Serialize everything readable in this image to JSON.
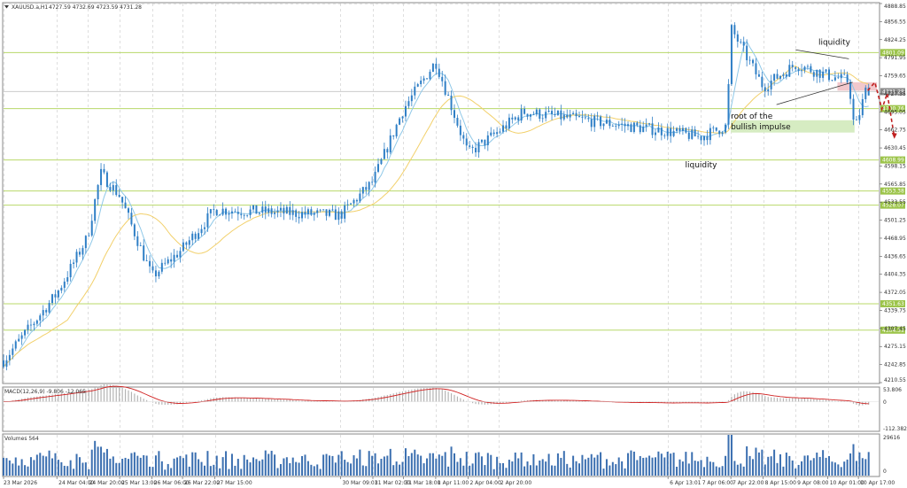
{
  "header": {
    "symbol": "XAUUSD.a,H1",
    "ohlc": "4727.59 4732.69 4723.59 4731.28"
  },
  "colors": {
    "candle": "#2f7fc6",
    "ma_fast": "#8fc8e8",
    "ma_slow": "#f2d06b",
    "level_line": "#b8d86a",
    "level_tag": "#9cc44a",
    "price_tag": "#8a8a8a",
    "grid": "#c8c8c8",
    "macd_hist": "#b4b4b4",
    "macd_signal": "#d02020",
    "volume": "#3b6fb0",
    "supply_zone": "#f2c8cc",
    "demand_zone": "#d6ecc2",
    "projection": "#c02020"
  },
  "chart_data": [
    {
      "type": "candlestick",
      "symbol": "XAUUSD.a",
      "timeframe": "H1",
      "ylim": [
        4210.55,
        4888.85
      ],
      "y_ticks": [
        4888.85,
        4856.55,
        4824.25,
        4791.95,
        4759.65,
        4727.35,
        4695.05,
        4662.75,
        4630.45,
        4598.15,
        4565.85,
        4533.55,
        4501.25,
        4468.95,
        4436.65,
        4404.35,
        4372.05,
        4339.75,
        4307.45,
        4275.15,
        4242.85,
        4210.55
      ],
      "x_labels": [
        "23 Mar 2026",
        "24 Mar 04:00",
        "24 Mar 20:00",
        "25 Mar 13:00",
        "26 Mar 06:00",
        "26 Mar 22:00",
        "27 Mar 15:00",
        "30 Mar 09:01",
        "31 Mar 02:00",
        "31 Mar 18:00",
        "1 Apr 11:00",
        "2 Apr 04:00",
        "2 Apr 20:00",
        "6 Apr 13:01",
        "7 Apr 06:00",
        "7 Apr 22:00",
        "8 Apr 15:00",
        "9 Apr 08:00",
        "10 Apr 01:00",
        "10 Apr 17:00"
      ],
      "series": [
        {
          "anchors": [
            {
              "x": "23 Mar 2026",
              "y": 4250
            },
            {
              "x": "24 Mar 04:00",
              "y": 4370
            },
            {
              "x": "24 Mar 20:00",
              "y": 4470
            },
            {
              "x": "25 Mar 03:00",
              "y": 4585
            },
            {
              "x": "25 Mar 13:00",
              "y": 4545
            },
            {
              "x": "26 Mar 06:00",
              "y": 4400
            },
            {
              "x": "26 Mar 22:00",
              "y": 4450
            },
            {
              "x": "27 Mar 15:00",
              "y": 4520
            },
            {
              "x": "30 Mar 09:01",
              "y": 4510
            },
            {
              "x": "31 Mar 02:00",
              "y": 4570
            },
            {
              "x": "31 Mar 18:00",
              "y": 4700
            },
            {
              "x": "1 Apr 11:00",
              "y": 4785
            },
            {
              "x": "2 Apr 04:00",
              "y": 4620
            },
            {
              "x": "2 Apr 20:00",
              "y": 4660
            },
            {
              "x": "3 Apr 09:00",
              "y": 4695
            },
            {
              "x": "6 Apr 13:01",
              "y": 4660
            },
            {
              "x": "7 Apr 06:00",
              "y": 4650
            },
            {
              "x": "7 Apr 20:00",
              "y": 4670
            },
            {
              "x": "7 Apr 22:00",
              "y": 4845
            },
            {
              "x": "8 Apr 15:00",
              "y": 4740
            },
            {
              "x": "9 Apr 08:00",
              "y": 4780
            },
            {
              "x": "10 Apr 01:00",
              "y": 4760
            },
            {
              "x": "10 Apr 12:00",
              "y": 4750
            },
            {
              "x": "10 Apr 15:00",
              "y": 4660
            },
            {
              "x": "10 Apr 21:00",
              "y": 4735
            }
          ]
        }
      ],
      "levels": [
        4801.09,
        4731.28,
        4700.76,
        4608.99,
        4553.38,
        4528.07,
        4351.63,
        4304.39
      ],
      "level_tags": [
        "4801.09",
        "4731.28",
        "4700.76",
        "4608.99",
        "4553.38",
        "4528.07",
        "4351.63",
        "4304.39"
      ],
      "supply_zone": [
        4733,
        4748
      ],
      "demand_zone": [
        4658,
        4680
      ],
      "annotations": [
        {
          "text": "liquidity",
          "x": "9 Apr 20:00",
          "y": 4815
        },
        {
          "text": "root of the",
          "x": "7 Apr 22:00",
          "y": 4683
        },
        {
          "text": "bullish impulse",
          "x": "7 Apr 22:00",
          "y": 4664
        },
        {
          "text": "liquidity",
          "x": "6 Apr 22:00",
          "y": 4596
        }
      ]
    },
    {
      "type": "bar-line",
      "title": "MACD(12,26,9) -9.806 -12.065",
      "ylim": [
        -112.382,
        53.806
      ],
      "y_ticks": [
        53.806,
        0.0,
        -112.382
      ]
    },
    {
      "type": "bar",
      "title": "Volumes 564",
      "ylim": [
        0,
        29616
      ],
      "y_ticks": [
        29616,
        0
      ]
    }
  ]
}
